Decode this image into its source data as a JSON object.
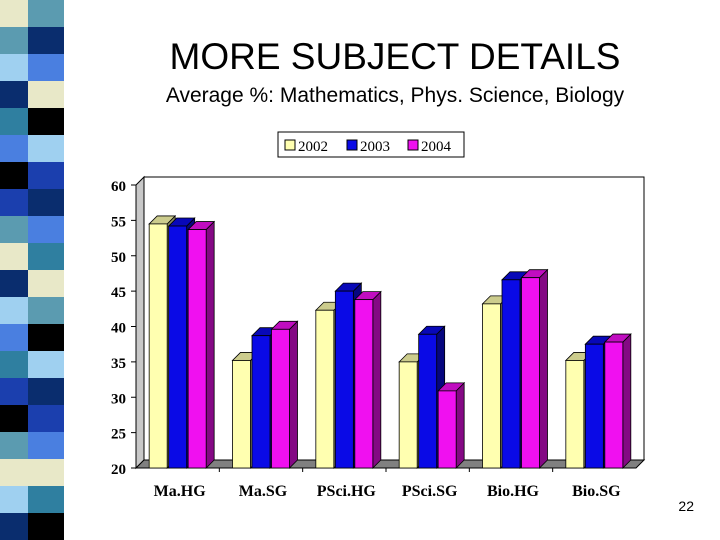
{
  "slide": {
    "title": "MORE SUBJECT DETAILS",
    "subtitle": "Average %: Mathematics, Phys. Science, Biology",
    "number": "22"
  },
  "colors": {
    "2002": "#ffffb0",
    "2003": "#0a0ae6",
    "2004": "#f010f0"
  },
  "chart_data": {
    "type": "bar",
    "categories": [
      "Ma.HG",
      "Ma.SG",
      "PSci.HG",
      "PSci.SG",
      "Bio.HG",
      "Bio.SG"
    ],
    "series": [
      {
        "name": "2002",
        "values": [
          54.5,
          35.2,
          42.3,
          35.0,
          43.2,
          35.2
        ]
      },
      {
        "name": "2003",
        "values": [
          54.2,
          38.7,
          45.0,
          38.9,
          46.6,
          37.5
        ]
      },
      {
        "name": "2004",
        "values": [
          53.7,
          39.6,
          43.8,
          30.9,
          46.9,
          37.8
        ]
      }
    ],
    "yticks": [
      20,
      25,
      30,
      35,
      40,
      45,
      50,
      55,
      60
    ],
    "ylim": [
      20,
      60
    ],
    "legend_position": "top-center",
    "grid": false,
    "bar_style": "3d"
  }
}
